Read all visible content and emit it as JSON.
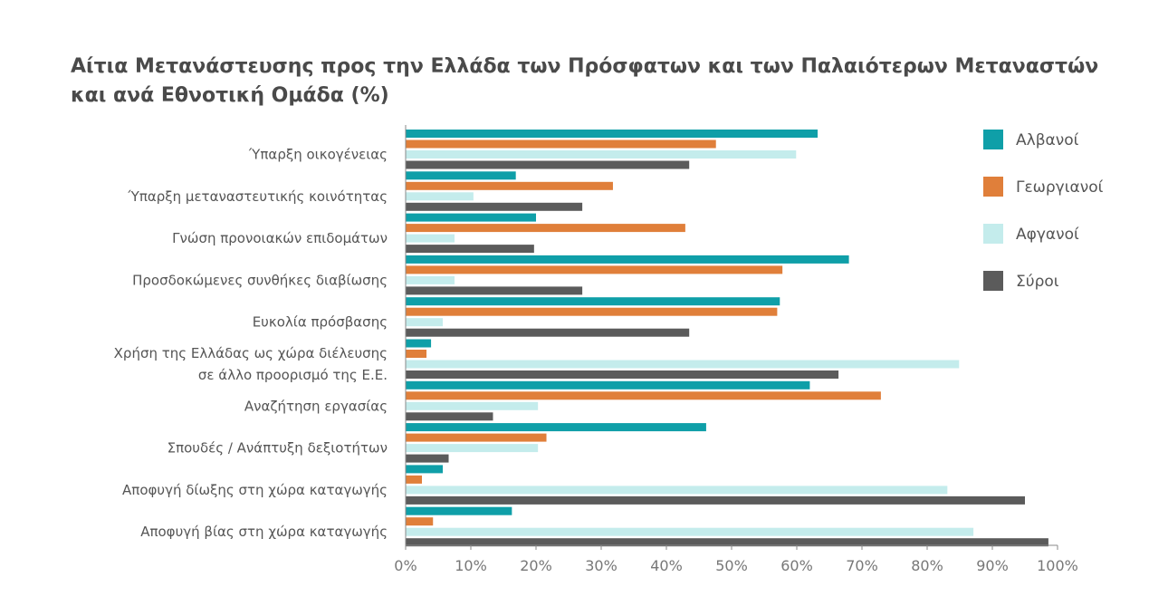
{
  "chart_data": {
    "type": "bar",
    "orientation": "horizontal",
    "title_lines": [
      "Αίτια Μετανάστευσης προς την Ελλάδα των Πρόσφατων και των Παλαιότερων Μεταναστών",
      "και ανά Εθνοτική Ομάδα (%)"
    ],
    "categories": [
      [
        "Ύπαρξη οικογένειας"
      ],
      [
        "Ύπαρξη μεταναστευτικής κοινότητας"
      ],
      [
        "Γνώση προνοιακών επιδομάτων"
      ],
      [
        "Προσδοκώμενες συνθήκες διαβίωσης"
      ],
      [
        "Ευκολία πρόσβασης"
      ],
      [
        "Χρήση της Ελλάδας ως χώρα διέλευσης",
        "σε άλλο προορισμό της Ε.Ε."
      ],
      [
        "Αναζήτηση εργασίας"
      ],
      [
        "Σπουδές / Ανάπτυξη δεξιοτήτων"
      ],
      [
        "Αποφυγή δίωξης στη χώρα καταγωγής"
      ],
      [
        "Αποφυγή βίας στη χώρα καταγωγής"
      ]
    ],
    "series": [
      {
        "name": "Αλβανοί",
        "color": "#0f9fa8",
        "values": [
          63.2,
          16.9,
          20.0,
          68.0,
          57.4,
          3.9,
          62.0,
          46.1,
          5.7,
          16.3
        ]
      },
      {
        "name": "Γεωργιανοί",
        "color": "#e07f3a",
        "values": [
          47.6,
          31.8,
          42.9,
          57.8,
          57.0,
          3.2,
          72.9,
          21.6,
          2.5,
          4.2
        ]
      },
      {
        "name": "Αφγανοί",
        "color": "#c4ecec",
        "values": [
          59.9,
          10.4,
          7.5,
          7.5,
          5.7,
          84.9,
          20.3,
          20.3,
          83.1,
          87.1
        ]
      },
      {
        "name": "Σύροι",
        "color": "#5b5b5b",
        "values": [
          43.5,
          27.1,
          19.7,
          27.1,
          43.5,
          66.4,
          13.4,
          6.6,
          95.0,
          98.6
        ]
      }
    ],
    "xlim": [
      0,
      100
    ],
    "xticks": [
      "0%",
      "10%",
      "20%",
      "30%",
      "40%",
      "50%",
      "60%",
      "70%",
      "80%",
      "90%",
      "100%"
    ],
    "legend_position": "right",
    "grid": false
  }
}
